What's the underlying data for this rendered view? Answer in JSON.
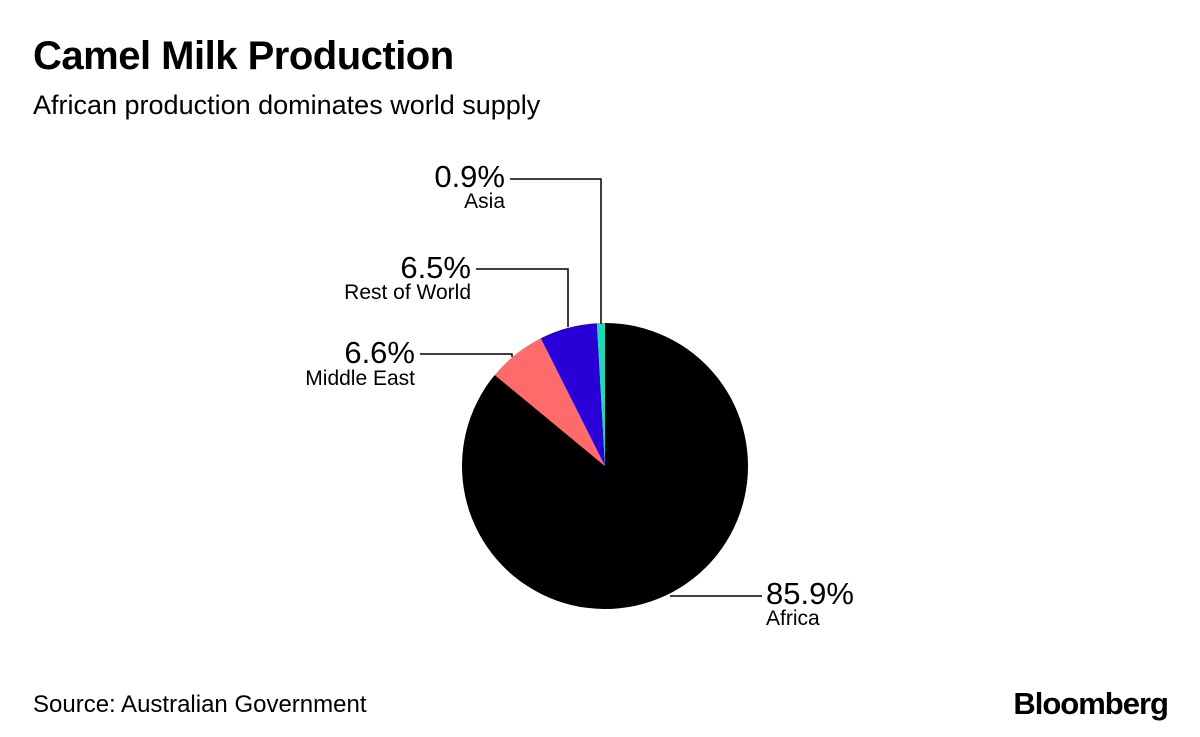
{
  "header": {
    "title": "Camel Milk Production",
    "subtitle": "African production dominates world supply"
  },
  "chart_data": {
    "type": "pie",
    "title": "Camel Milk Production",
    "subtitle": "African production dominates world supply",
    "start": "12 o'clock",
    "direction": "clockwise",
    "slices": [
      {
        "name": "Africa",
        "value": 85.9,
        "label": "85.9%",
        "color": "#000000"
      },
      {
        "name": "Middle East",
        "value": 6.6,
        "label": "6.6%",
        "color": "#ff6a6a"
      },
      {
        "name": "Rest of World",
        "value": 6.5,
        "label": "6.5%",
        "color": "#2800d7"
      },
      {
        "name": "Asia",
        "value": 0.9,
        "label": "0.9%",
        "color": "#1ed9b5"
      }
    ]
  },
  "footer": {
    "source": "Source: Australian Government",
    "logo": "Bloomberg"
  }
}
